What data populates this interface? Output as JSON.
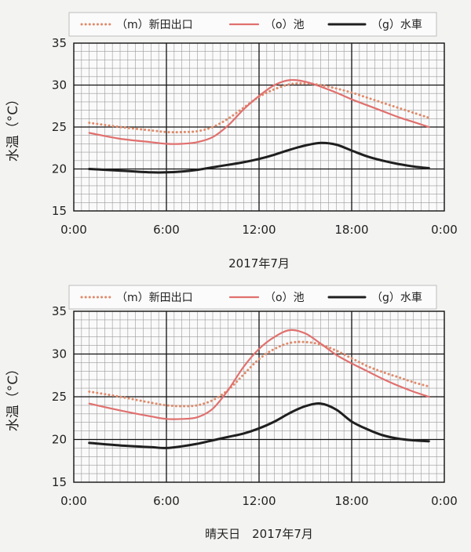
{
  "chart_data": [
    {
      "type": "line",
      "xlabel": "2017年7月",
      "ylabel": "水温（°C）",
      "ylim": [
        15,
        35
      ],
      "yticks": [
        15,
        20,
        25,
        30,
        35
      ],
      "xlim": [
        0,
        24
      ],
      "xticks": [
        "0:00",
        "6:00",
        "12:00",
        "18:00",
        "0:00"
      ],
      "grid": true,
      "legend": "top",
      "series": [
        {
          "name": "（m）新田出口",
          "style": "dotted",
          "color": "#e08a6a",
          "x": [
            1,
            3,
            5,
            6,
            7,
            8,
            9,
            10,
            11,
            12,
            13,
            14,
            15,
            16,
            17,
            18,
            19,
            20,
            21,
            22,
            23
          ],
          "y": [
            25.5,
            25.0,
            24.6,
            24.4,
            24.4,
            24.5,
            25.0,
            26.0,
            27.3,
            28.6,
            29.5,
            30.1,
            30.2,
            30.0,
            29.6,
            29.1,
            28.5,
            27.9,
            27.3,
            26.7,
            26.1
          ]
        },
        {
          "name": "（o）池",
          "style": "solid",
          "color": "#e0706e",
          "x": [
            1,
            3,
            5,
            6,
            7,
            8,
            9,
            10,
            11,
            12,
            13,
            14,
            15,
            16,
            17,
            18,
            19,
            20,
            21,
            22,
            23
          ],
          "y": [
            24.3,
            23.6,
            23.2,
            23.0,
            23.0,
            23.2,
            23.8,
            25.2,
            27.1,
            28.7,
            30.0,
            30.6,
            30.4,
            29.8,
            29.1,
            28.3,
            27.6,
            26.9,
            26.2,
            25.6,
            25.0
          ]
        },
        {
          "name": "（g）水車",
          "style": "solid",
          "color": "#1f1f1f",
          "x": [
            1,
            3,
            5,
            6,
            7,
            8,
            9,
            10,
            11,
            12,
            13,
            14,
            15,
            16,
            17,
            18,
            19,
            20,
            21,
            22,
            23
          ],
          "y": [
            20.0,
            19.8,
            19.6,
            19.6,
            19.7,
            19.9,
            20.2,
            20.5,
            20.8,
            21.2,
            21.7,
            22.3,
            22.8,
            23.1,
            22.9,
            22.2,
            21.5,
            21.0,
            20.6,
            20.3,
            20.1
          ]
        }
      ]
    },
    {
      "type": "line",
      "xlabel": "晴天日　2017年7月",
      "ylabel": "水温（°C）",
      "ylim": [
        15,
        35
      ],
      "yticks": [
        15,
        20,
        25,
        30,
        35
      ],
      "xlim": [
        0,
        24
      ],
      "xticks": [
        "0:00",
        "6:00",
        "12:00",
        "18:00",
        "0:00"
      ],
      "grid": true,
      "legend": "top",
      "series": [
        {
          "name": "（m）新田出口",
          "style": "dotted",
          "color": "#e08a6a",
          "x": [
            1,
            3,
            5,
            6,
            7,
            8,
            9,
            10,
            11,
            12,
            13,
            14,
            15,
            16,
            17,
            18,
            19,
            20,
            21,
            22,
            23
          ],
          "y": [
            25.6,
            25.0,
            24.3,
            24.0,
            23.9,
            24.0,
            24.6,
            25.8,
            27.6,
            29.4,
            30.6,
            31.3,
            31.4,
            31.1,
            30.4,
            29.5,
            28.6,
            27.9,
            27.3,
            26.7,
            26.2
          ]
        },
        {
          "name": "（o）池",
          "style": "solid",
          "color": "#e0706e",
          "x": [
            1,
            3,
            5,
            6,
            7,
            8,
            9,
            10,
            11,
            12,
            13,
            14,
            15,
            16,
            17,
            18,
            19,
            20,
            21,
            22,
            23
          ],
          "y": [
            24.2,
            23.4,
            22.7,
            22.4,
            22.4,
            22.6,
            23.6,
            25.8,
            28.5,
            30.6,
            32.0,
            32.8,
            32.4,
            31.2,
            29.9,
            28.9,
            28.0,
            27.1,
            26.3,
            25.6,
            25.0
          ]
        },
        {
          "name": "（g）水車",
          "style": "solid",
          "color": "#1f1f1f",
          "x": [
            1,
            3,
            5,
            6,
            7,
            8,
            9,
            10,
            11,
            12,
            13,
            14,
            15,
            16,
            17,
            18,
            19,
            20,
            21,
            22,
            23
          ],
          "y": [
            19.6,
            19.3,
            19.1,
            19.0,
            19.2,
            19.5,
            19.9,
            20.3,
            20.7,
            21.3,
            22.1,
            23.1,
            23.9,
            24.2,
            23.5,
            22.1,
            21.2,
            20.5,
            20.1,
            19.9,
            19.8
          ]
        }
      ]
    }
  ]
}
